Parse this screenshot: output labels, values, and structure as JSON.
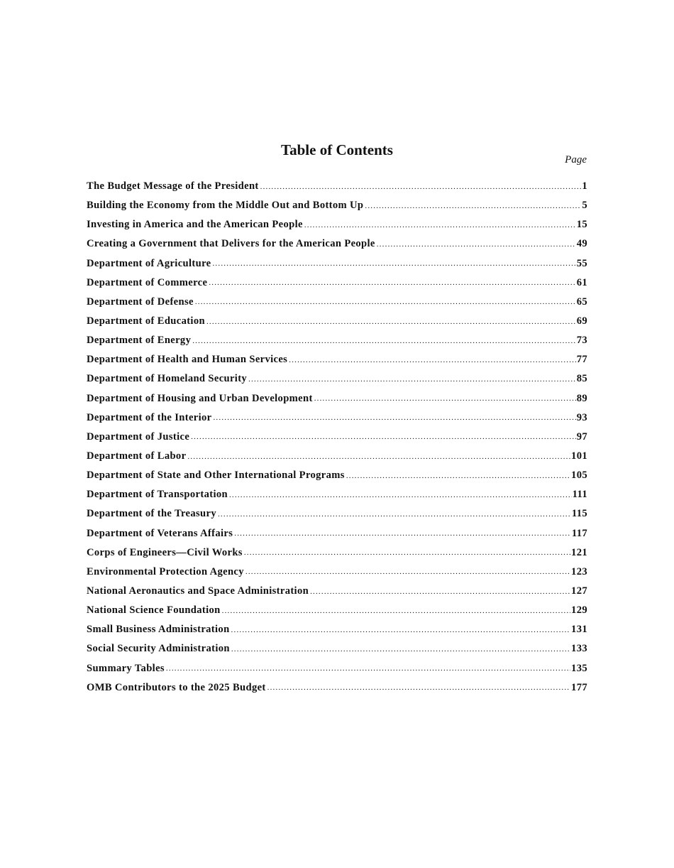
{
  "title": "Table of Contents",
  "page_label": "Page",
  "entries": [
    {
      "label": "The Budget Message of the President",
      "page": "1"
    },
    {
      "label": "Building the Economy from the Middle Out and Bottom Up",
      "page": "5"
    },
    {
      "label": "Investing in America and the American People",
      "page": "15"
    },
    {
      "label": "Creating a Government that Delivers for the American People",
      "page": "49"
    },
    {
      "label": "Department of Agriculture",
      "page": "55"
    },
    {
      "label": "Department of Commerce",
      "page": "61"
    },
    {
      "label": "Department of Defense",
      "page": "65"
    },
    {
      "label": "Department of Education",
      "page": "69"
    },
    {
      "label": "Department of Energy",
      "page": "73"
    },
    {
      "label": "Department of Health and Human Services",
      "page": "77"
    },
    {
      "label": "Department of Homeland Security",
      "page": "85"
    },
    {
      "label": "Department of Housing and Urban Development",
      "page": "89"
    },
    {
      "label": "Department of the Interior",
      "page": "93"
    },
    {
      "label": "Department of Justice",
      "page": "97"
    },
    {
      "label": "Department of Labor",
      "page": "101"
    },
    {
      "label": "Department of State and Other International Programs",
      "page": "105"
    },
    {
      "label": "Department of Transportation",
      "page": "111"
    },
    {
      "label": "Department of the Treasury",
      "page": "115"
    },
    {
      "label": "Department of Veterans Affairs",
      "page": "117"
    },
    {
      "label": "Corps of Engineers—Civil Works",
      "page": "121"
    },
    {
      "label": "Environmental Protection Agency",
      "page": "123"
    },
    {
      "label": "National Aeronautics and Space Administration",
      "page": "127"
    },
    {
      "label": "National Science Foundation",
      "page": "129"
    },
    {
      "label": "Small Business Administration",
      "page": "131"
    },
    {
      "label": "Social Security Administration",
      "page": "133"
    },
    {
      "label": "Summary Tables",
      "page": "135"
    },
    {
      "label": "OMB Contributors to the 2025 Budget",
      "page": "177"
    }
  ]
}
